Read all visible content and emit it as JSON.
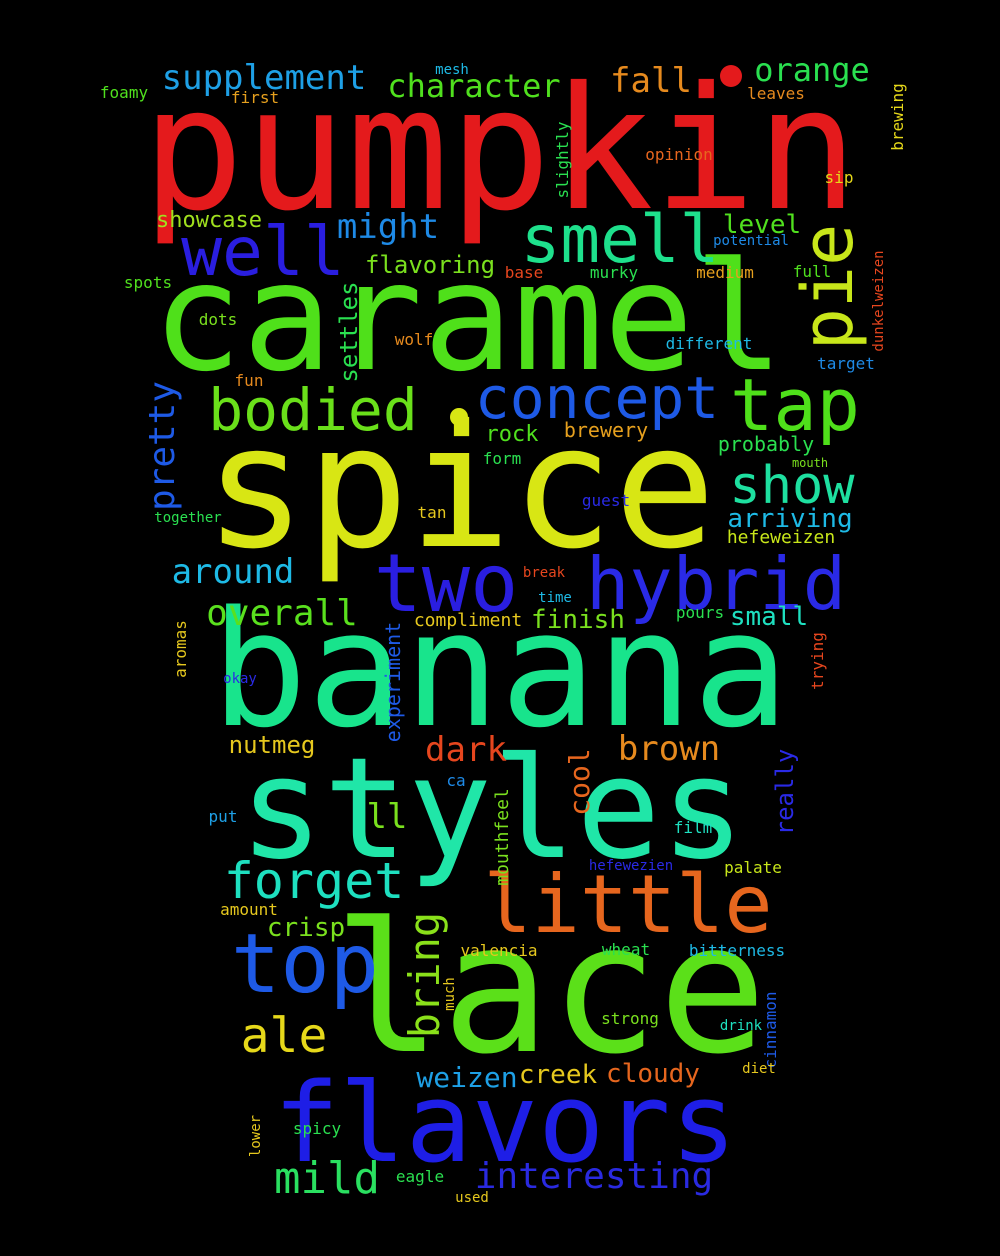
{
  "background": "#000000",
  "words": [
    {
      "text": "pumpkin",
      "color": "#e41a1c"
    },
    {
      "text": "caramel",
      "color": "#4fe01a"
    },
    {
      "text": "spice",
      "color": "#d8e614"
    },
    {
      "text": "banana",
      "color": "#18e48c"
    },
    {
      "text": "styles",
      "color": "#20e6a8"
    },
    {
      "text": "lace",
      "color": "#5be019"
    },
    {
      "text": "flavors",
      "color": "#1e1ee6"
    },
    {
      "text": "little",
      "color": "#e6661e"
    },
    {
      "text": "two",
      "color": "#2a1ee0"
    },
    {
      "text": "hybrid",
      "color": "#2a2ae6"
    },
    {
      "text": "top",
      "color": "#1e5ae6"
    },
    {
      "text": "tap",
      "color": "#4fe01a"
    },
    {
      "text": "concept",
      "color": "#1e5ae6"
    },
    {
      "text": "smell",
      "color": "#1ee08c"
    },
    {
      "text": "bodied",
      "color": "#6ae01a"
    },
    {
      "text": "well",
      "color": "#2a1ee0"
    },
    {
      "text": "pie",
      "color": "#c8e61a"
    },
    {
      "text": "forget",
      "color": "#1ee0c0"
    },
    {
      "text": "show",
      "color": "#1ee0a0"
    },
    {
      "text": "ale",
      "color": "#e6d81a"
    },
    {
      "text": "mild",
      "color": "#2ae060"
    },
    {
      "text": "interesting",
      "color": "#2a2ae0"
    },
    {
      "text": "bring",
      "color": "#8ae01a"
    },
    {
      "text": "overall",
      "color": "#5ae01e"
    },
    {
      "text": "around",
      "color": "#1ebae6"
    },
    {
      "text": "supplement",
      "color": "#1ea0e6"
    },
    {
      "text": "character",
      "color": "#50e01e"
    },
    {
      "text": "orange",
      "color": "#2ae050"
    },
    {
      "text": "fall",
      "color": "#e68a1e"
    },
    {
      "text": "might",
      "color": "#1e8ae6"
    },
    {
      "text": "pretty",
      "color": "#1e5ae6"
    },
    {
      "text": "dark",
      "color": "#e6461e"
    },
    {
      "text": "brown",
      "color": "#e68a1e"
    },
    {
      "text": "ll",
      "color": "#7ae01e"
    },
    {
      "text": "cool",
      "color": "#e6661e"
    },
    {
      "text": "weizen",
      "color": "#1ea0e6"
    },
    {
      "text": "creek",
      "color": "#e6c81e"
    },
    {
      "text": "cloudy",
      "color": "#e6661e"
    },
    {
      "text": "crisp",
      "color": "#7ae01e"
    },
    {
      "text": "nutmeg",
      "color": "#e6c81e"
    },
    {
      "text": "arriving",
      "color": "#1ebae6"
    },
    {
      "text": "finish",
      "color": "#7ae01e"
    },
    {
      "text": "small",
      "color": "#1ee0c0"
    },
    {
      "text": "level",
      "color": "#50e01e"
    },
    {
      "text": "flavoring",
      "color": "#7ae01e"
    },
    {
      "text": "showcase",
      "color": "#a0e01e"
    },
    {
      "text": "settles",
      "color": "#2ae050"
    },
    {
      "text": "rock",
      "color": "#50e01e"
    },
    {
      "text": "brewery",
      "color": "#e6a01e"
    },
    {
      "text": "probably",
      "color": "#2ae050"
    },
    {
      "text": "really",
      "color": "#2a2ae6"
    },
    {
      "text": "experiment",
      "color": "#1e5ae6"
    },
    {
      "text": "hefeweizen",
      "color": "#c8e61a"
    },
    {
      "text": "mouthfeel",
      "color": "#7ae01e"
    },
    {
      "text": "compliment",
      "color": "#e6c81e"
    },
    {
      "text": "foamy",
      "color": "#50e01e"
    },
    {
      "text": "first",
      "color": "#e6a01e"
    },
    {
      "text": "mesh",
      "color": "#1ebae6"
    },
    {
      "text": "leaves",
      "color": "#e68a1e"
    },
    {
      "text": "brewing",
      "color": "#e6d81a"
    },
    {
      "text": "opinion",
      "color": "#e6661e"
    },
    {
      "text": "slightly",
      "color": "#2ae050"
    },
    {
      "text": "sip",
      "color": "#e6d81a"
    },
    {
      "text": "potential",
      "color": "#1e8ae6"
    },
    {
      "text": "spots",
      "color": "#50e01e"
    },
    {
      "text": "base",
      "color": "#e6461e"
    },
    {
      "text": "murky",
      "color": "#2ae050"
    },
    {
      "text": "medium",
      "color": "#e6a01e"
    },
    {
      "text": "full",
      "color": "#50e01e"
    },
    {
      "text": "dunkelweizen",
      "color": "#e6461e"
    },
    {
      "text": "dots",
      "color": "#7ae01e"
    },
    {
      "text": "wolf",
      "color": "#e68a1e"
    },
    {
      "text": "different",
      "color": "#1ebae6"
    },
    {
      "text": "target",
      "color": "#1e8ae6"
    },
    {
      "text": "fun",
      "color": "#e68a1e"
    },
    {
      "text": "form",
      "color": "#2ae050"
    },
    {
      "text": "mouth",
      "color": "#7ae01e"
    },
    {
      "text": "guest",
      "color": "#2a2ae6"
    },
    {
      "text": "together",
      "color": "#2ae050"
    },
    {
      "text": "tan",
      "color": "#e6c81e"
    },
    {
      "text": "break",
      "color": "#e6461e"
    },
    {
      "text": "time",
      "color": "#1ebae6"
    },
    {
      "text": "pours",
      "color": "#2ae050"
    },
    {
      "text": "aromas",
      "color": "#e6c81e"
    },
    {
      "text": "okay",
      "color": "#2a2ae6"
    },
    {
      "text": "trying",
      "color": "#e6461e"
    },
    {
      "text": "ca",
      "color": "#1e8ae6"
    },
    {
      "text": "put",
      "color": "#1ea0e6"
    },
    {
      "text": "film",
      "color": "#1ee0c0"
    },
    {
      "text": "hefewezien",
      "color": "#2a2ae6"
    },
    {
      "text": "palate",
      "color": "#c8e61a"
    },
    {
      "text": "amount",
      "color": "#e6c81e"
    },
    {
      "text": "valencia",
      "color": "#e6c81e"
    },
    {
      "text": "wheat",
      "color": "#2ae050"
    },
    {
      "text": "bitterness",
      "color": "#1ebae6"
    },
    {
      "text": "much",
      "color": "#e6c81e"
    },
    {
      "text": "cinnamon",
      "color": "#1e5ae6"
    },
    {
      "text": "drink",
      "color": "#1ee0c0"
    },
    {
      "text": "strong",
      "color": "#7ae01e"
    },
    {
      "text": "diet",
      "color": "#e6c81e"
    },
    {
      "text": "spicy",
      "color": "#2ae050"
    },
    {
      "text": "lower",
      "color": "#e6c81e"
    },
    {
      "text": "eagle",
      "color": "#2ae050"
    },
    {
      "text": "used",
      "color": "#e6c81e"
    }
  ]
}
